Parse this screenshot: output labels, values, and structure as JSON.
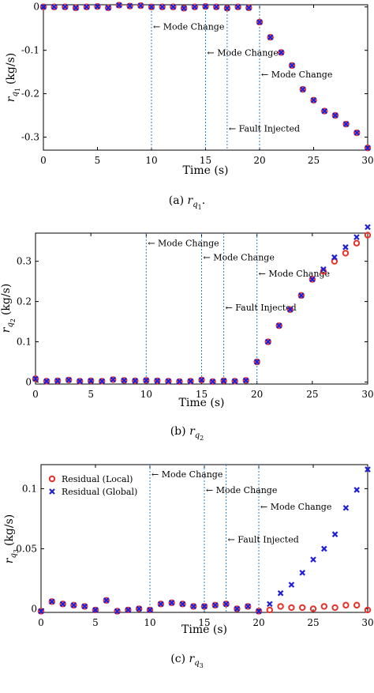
{
  "colors": {
    "local": "#e8312a",
    "global": "#1f1fd6",
    "vline": "#2a7fd0",
    "axis": "#000000"
  },
  "chart_data": [
    {
      "type": "scatter",
      "caption_prefix": "(a) ",
      "ylabel_main": "r",
      "ylabel_sub": "q",
      "ylabel_subsub": "1",
      "ylabel_unit": "(kg/s)",
      "caption_var": "r",
      "caption_sub": "q",
      "caption_subsub": "1",
      "caption_suffix": ".",
      "xlabel": "Time (s)",
      "xlim": [
        0,
        30
      ],
      "ylim": [
        -0.33,
        0.005
      ],
      "xticks": [
        0,
        5,
        10,
        15,
        20,
        25,
        30
      ],
      "yticks": [
        0,
        -0.1,
        -0.2,
        -0.3
      ],
      "ytick_labels": [
        "0",
        "-0.1",
        "-0.2",
        "-0.3"
      ],
      "vlines": [
        10,
        15,
        17,
        20
      ],
      "annotations": [
        {
          "text": "← Mode Change",
          "x": 10,
          "y": -0.045
        },
        {
          "text": "← Mode Change",
          "x": 15,
          "y": -0.105
        },
        {
          "text": "← Mode Change",
          "x": 20,
          "y": -0.155
        },
        {
          "text": "← Fault Injected",
          "x": 17,
          "y": -0.28
        }
      ],
      "legend": null,
      "series": [
        {
          "name": "Residual (Local)",
          "marker": "circle",
          "x": [
            0,
            1,
            2,
            3,
            4,
            5,
            6,
            7,
            8,
            9,
            10,
            11,
            12,
            13,
            14,
            15,
            16,
            17,
            18,
            19,
            20,
            21,
            22,
            23,
            24,
            25,
            26,
            27,
            28,
            29,
            30
          ],
          "y": [
            0,
            0,
            0,
            -0.002,
            0,
            0.001,
            -0.002,
            0.004,
            0.002,
            0.003,
            0,
            0,
            0,
            -0.003,
            0,
            0.001,
            0,
            -0.003,
            0,
            -0.002,
            -0.035,
            -0.07,
            -0.105,
            -0.135,
            -0.19,
            -0.215,
            -0.24,
            -0.25,
            -0.27,
            -0.29,
            -0.325
          ]
        },
        {
          "name": "Residual (Global)",
          "marker": "cross",
          "x": [
            0,
            1,
            2,
            3,
            4,
            5,
            6,
            7,
            8,
            9,
            10,
            11,
            12,
            13,
            14,
            15,
            16,
            17,
            18,
            19,
            20,
            21,
            22,
            23,
            24,
            25,
            26,
            27,
            28,
            29,
            30
          ],
          "y": [
            0,
            0,
            0,
            -0.002,
            0,
            0.001,
            -0.002,
            0.004,
            0.002,
            0.003,
            0,
            0,
            0,
            -0.003,
            0,
            0.001,
            0,
            -0.003,
            0,
            -0.002,
            -0.035,
            -0.07,
            -0.105,
            -0.135,
            -0.19,
            -0.215,
            -0.24,
            -0.25,
            -0.27,
            -0.29,
            -0.325
          ]
        }
      ]
    },
    {
      "type": "scatter",
      "caption_prefix": "(b) ",
      "ylabel_main": "r",
      "ylabel_sub": "q",
      "ylabel_subsub": "2",
      "ylabel_unit": "(kg/s)",
      "caption_var": "r",
      "caption_sub": "q",
      "caption_subsub": "2",
      "caption_suffix": "",
      "xlabel": "Time (s)",
      "xlim": [
        0,
        30
      ],
      "ylim": [
        -0.005,
        0.37
      ],
      "xticks": [
        0,
        5,
        10,
        15,
        20,
        25,
        30
      ],
      "yticks": [
        0,
        0.1,
        0.2,
        0.3
      ],
      "ytick_labels": [
        "0",
        "0.1",
        "0.2",
        "0.3"
      ],
      "vlines": [
        10,
        15,
        17,
        20
      ],
      "annotations": [
        {
          "text": "← Mode Change",
          "x": 10,
          "y": 0.345
        },
        {
          "text": "← Mode Change",
          "x": 15,
          "y": 0.31
        },
        {
          "text": "← Mode Change",
          "x": 20,
          "y": 0.27
        },
        {
          "text": "← Fault Injected",
          "x": 17,
          "y": 0.185
        }
      ],
      "legend": null,
      "series": [
        {
          "name": "Residual (Local)",
          "marker": "circle",
          "x": [
            0,
            1,
            2,
            3,
            4,
            5,
            6,
            7,
            8,
            9,
            10,
            11,
            12,
            13,
            14,
            15,
            16,
            17,
            18,
            19,
            20,
            21,
            22,
            23,
            24,
            25,
            26,
            27,
            28,
            29,
            30
          ],
          "y": [
            0.008,
            0.002,
            0.003,
            0.005,
            0.002,
            0.003,
            0.002,
            0.006,
            0.004,
            0.003,
            0.004,
            0.003,
            0.002,
            0.001,
            0.002,
            0.005,
            0.001,
            0.003,
            0.002,
            0.004,
            0.05,
            0.1,
            0.14,
            0.18,
            0.215,
            0.255,
            0.275,
            0.3,
            0.32,
            0.345,
            0.365
          ]
        },
        {
          "name": "Residual (Global)",
          "marker": "cross",
          "x": [
            0,
            1,
            2,
            3,
            4,
            5,
            6,
            7,
            8,
            9,
            10,
            11,
            12,
            13,
            14,
            15,
            16,
            17,
            18,
            19,
            20,
            21,
            22,
            23,
            24,
            25,
            26,
            27,
            28,
            29,
            30
          ],
          "y": [
            0.008,
            0.002,
            0.003,
            0.005,
            0.002,
            0.003,
            0.002,
            0.006,
            0.004,
            0.003,
            0.004,
            0.003,
            0.002,
            0.001,
            0.002,
            0.005,
            0.001,
            0.003,
            0.002,
            0.004,
            0.05,
            0.1,
            0.14,
            0.18,
            0.215,
            0.255,
            0.28,
            0.31,
            0.335,
            0.36,
            0.385
          ]
        }
      ]
    },
    {
      "type": "scatter",
      "caption_prefix": "(c) ",
      "ylabel_main": "r",
      "ylabel_sub": "q",
      "ylabel_subsub": "3",
      "ylabel_unit": "(kg/s)",
      "caption_var": "r",
      "caption_sub": "q",
      "caption_subsub": "3",
      "caption_suffix": "",
      "xlabel": "Time (s)",
      "xlim": [
        0,
        30
      ],
      "ylim": [
        -0.003,
        0.12
      ],
      "xticks": [
        0,
        5,
        10,
        15,
        20,
        25,
        30
      ],
      "yticks": [
        0,
        0.05,
        0.1
      ],
      "ytick_labels": [
        "0",
        "0.05",
        "0.1"
      ],
      "vlines": [
        10,
        15,
        17,
        20
      ],
      "annotations": [
        {
          "text": "← Mode Change",
          "x": 10,
          "y": 0.112
        },
        {
          "text": "← Mode Change",
          "x": 15,
          "y": 0.099
        },
        {
          "text": "← Mode Change",
          "x": 20,
          "y": 0.085
        },
        {
          "text": "← Fault Injected",
          "x": 17,
          "y": 0.058
        }
      ],
      "legend": [
        "Residual (Local)",
        "Residual (Global)"
      ],
      "series": [
        {
          "name": "Residual (Local)",
          "marker": "circle",
          "x": [
            0,
            1,
            2,
            3,
            4,
            5,
            6,
            7,
            8,
            9,
            10,
            11,
            12,
            13,
            14,
            15,
            16,
            17,
            18,
            19,
            20,
            21,
            22,
            23,
            24,
            25,
            26,
            27,
            28,
            29,
            30
          ],
          "y": [
            -0.002,
            0.006,
            0.004,
            0.003,
            0.002,
            -0.001,
            0.007,
            -0.002,
            -0.001,
            0,
            -0.001,
            0.004,
            0.005,
            0.004,
            0.002,
            0.002,
            0.003,
            0.004,
            0,
            0.002,
            -0.002,
            -0.001,
            0.002,
            0.001,
            0.001,
            0,
            0.002,
            0.001,
            0.003,
            0.003,
            -0.001
          ]
        },
        {
          "name": "Residual (Global)",
          "marker": "cross",
          "x": [
            0,
            1,
            2,
            3,
            4,
            5,
            6,
            7,
            8,
            9,
            10,
            11,
            12,
            13,
            14,
            15,
            16,
            17,
            18,
            19,
            20,
            21,
            22,
            23,
            24,
            25,
            26,
            27,
            28,
            29,
            30
          ],
          "y": [
            -0.002,
            0.006,
            0.004,
            0.003,
            0.002,
            -0.001,
            0.007,
            -0.002,
            -0.001,
            0,
            -0.001,
            0.004,
            0.005,
            0.004,
            0.002,
            0.002,
            0.003,
            0.004,
            0,
            0.002,
            -0.002,
            0.004,
            0.013,
            0.02,
            0.03,
            0.041,
            0.05,
            0.062,
            0.084,
            0.099,
            0.116
          ]
        }
      ]
    }
  ]
}
